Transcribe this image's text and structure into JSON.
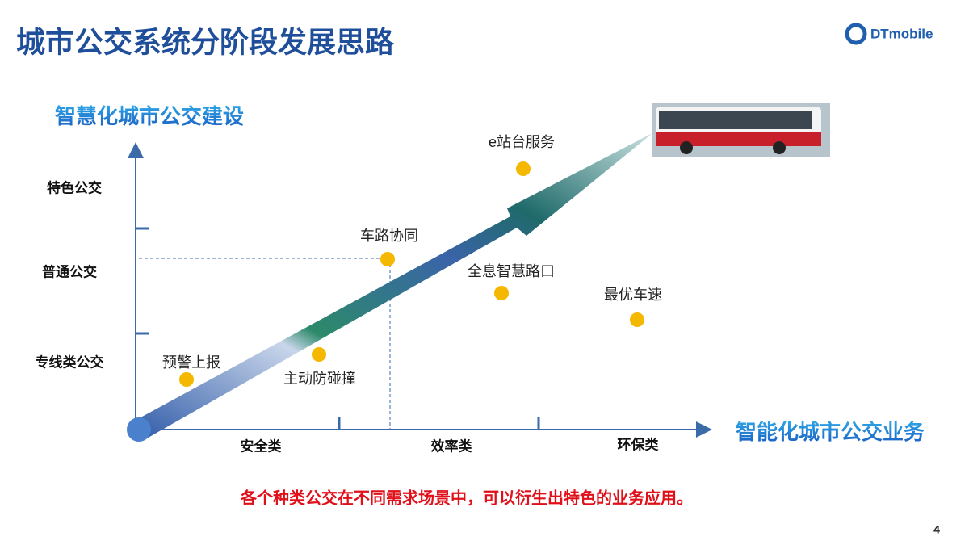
{
  "header": {
    "title": "城市公交系统分阶段发展思路",
    "logo": "DTmobile"
  },
  "axes": {
    "y_label": "智慧化城市公交建设",
    "x_label": "智能化城市公交业务",
    "y_levels": [
      "特色公交",
      "普通公交",
      "专线类公交"
    ],
    "x_categories": [
      "安全类",
      "效率类",
      "环保类"
    ]
  },
  "points": [
    {
      "label": "e站台服务"
    },
    {
      "label": "车路协同"
    },
    {
      "label": "全息智慧路口"
    },
    {
      "label": "最优车速"
    },
    {
      "label": "预警上报"
    },
    {
      "label": "主动防碰撞"
    }
  ],
  "caption": "各个种类公交在不同需求场景中，可以衍生出特色的业务应用。",
  "page_number": "4"
}
